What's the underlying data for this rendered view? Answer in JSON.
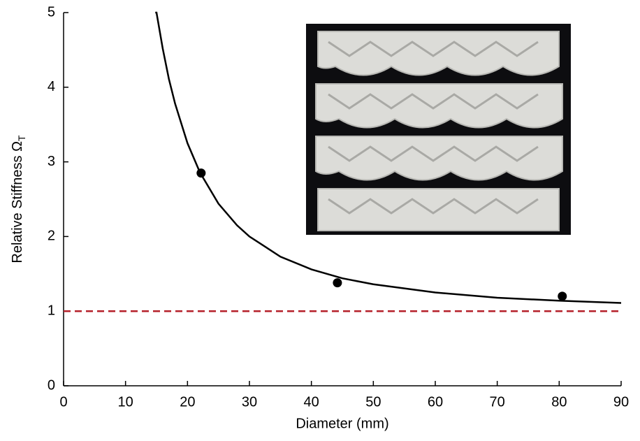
{
  "chart_data": {
    "type": "line",
    "xlabel": "Diameter (mm)",
    "ylabel": "Relative Stiffness Ω",
    "ylabel_subscript": "T",
    "xlim": [
      0,
      90
    ],
    "xticks": [
      0,
      10,
      20,
      30,
      40,
      50,
      60,
      70,
      80,
      90
    ],
    "ylim": [
      0,
      5
    ],
    "yticks": [
      0,
      1,
      2,
      3,
      4,
      5
    ],
    "series": [
      {
        "style": "line",
        "color": "#000000",
        "x": [
          14.8,
          15,
          16,
          17,
          18,
          20,
          22,
          25,
          28,
          30,
          35,
          40,
          45,
          50,
          60,
          70,
          80,
          90
        ],
        "values": [
          5.0,
          5.0,
          4.52,
          4.11,
          3.78,
          3.25,
          2.86,
          2.44,
          2.15,
          2.0,
          1.73,
          1.56,
          1.44,
          1.36,
          1.25,
          1.18,
          1.14,
          1.11
        ]
      },
      {
        "style": "points",
        "color": "#000000",
        "x": [
          22.2,
          44.2,
          80.5
        ],
        "values": [
          2.85,
          1.38,
          1.2
        ]
      }
    ],
    "reference_line": {
      "value": 1,
      "color": "#b5202a",
      "dashed": true
    }
  }
}
